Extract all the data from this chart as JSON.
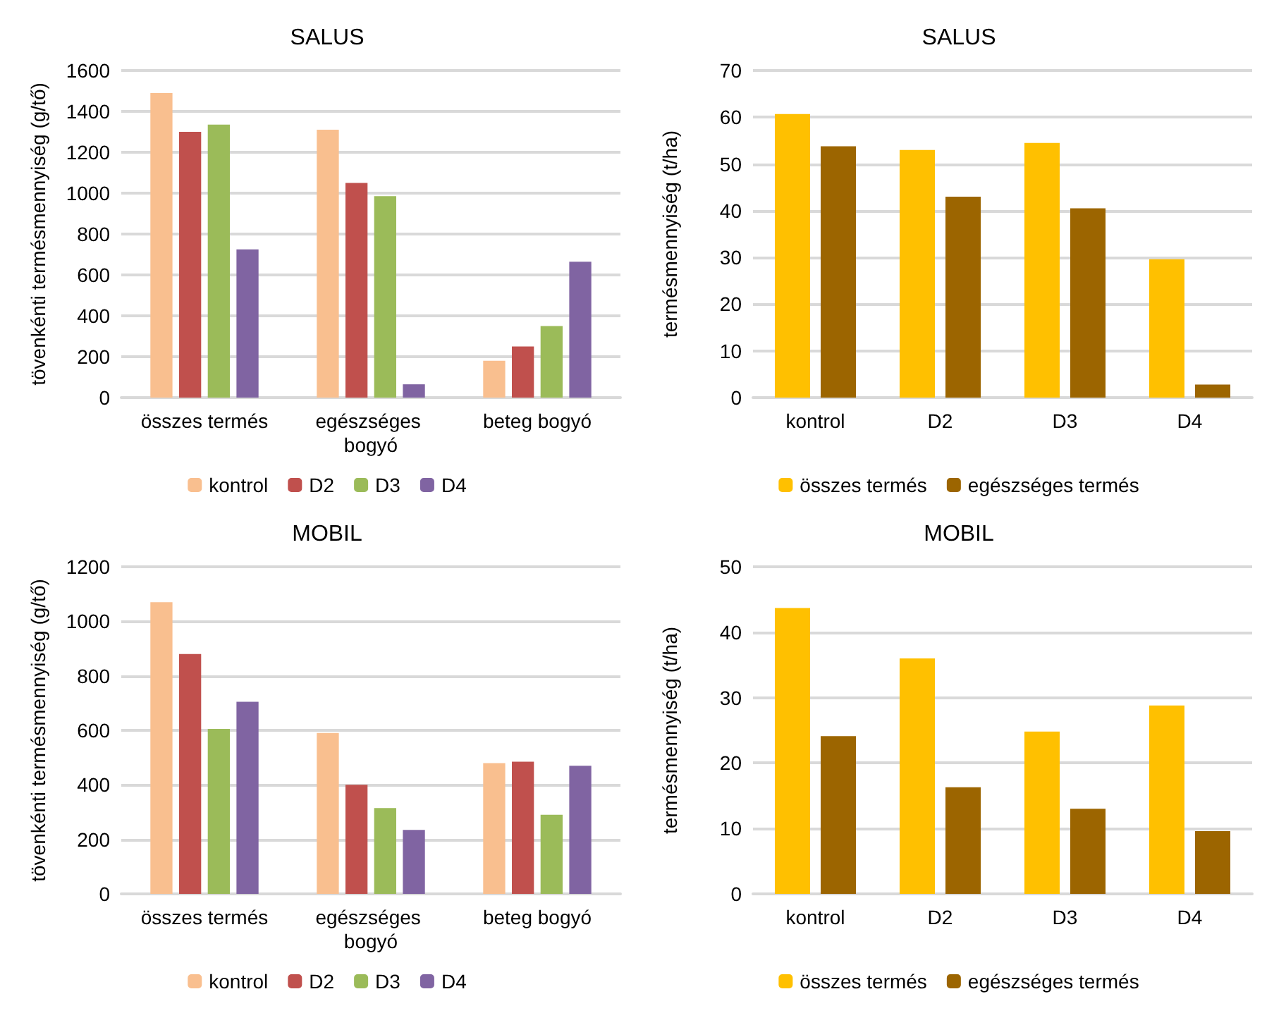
{
  "chart_data": [
    {
      "type": "bar",
      "title": "SALUS",
      "ylabel": "tövenkénti termésmennyiség (g/tő)",
      "categories": [
        "összes termés",
        "egészséges bogyó",
        "beteg bogyó"
      ],
      "series": [
        {
          "name": "kontrol",
          "color": "#f9bf8f",
          "values": [
            1490,
            1310,
            180
          ]
        },
        {
          "name": "D2",
          "color": "#c0504d",
          "values": [
            1300,
            1050,
            250
          ]
        },
        {
          "name": "D3",
          "color": "#9bbb59",
          "values": [
            1335,
            985,
            350
          ]
        },
        {
          "name": "D4",
          "color": "#8064a2",
          "values": [
            725,
            65,
            665
          ]
        }
      ],
      "ylim": [
        0,
        1600
      ],
      "yticks": [
        0,
        200,
        400,
        600,
        800,
        1000,
        1200,
        1400,
        1600
      ],
      "grid": "y",
      "legend": "bottom"
    },
    {
      "type": "bar",
      "title": "SALUS",
      "ylabel": "termésmennyiség (t/ha)",
      "categories": [
        "kontrol",
        "D2",
        "D3",
        "D4"
      ],
      "series": [
        {
          "name": "összes termés",
          "color": "#ffc000",
          "values": [
            60.7,
            53,
            54.5,
            29.6
          ]
        },
        {
          "name": "egészséges termés",
          "color": "#9c6500",
          "values": [
            53.8,
            43,
            40.5,
            2.8
          ]
        }
      ],
      "ylim": [
        0,
        70
      ],
      "yticks": [
        0,
        10,
        20,
        30,
        40,
        50,
        60,
        70
      ],
      "grid": "y",
      "legend": "bottom"
    },
    {
      "type": "bar",
      "title": "MOBIL",
      "ylabel": "tövenkénti termésmennyiség (g/tő)",
      "categories": [
        "összes termés",
        "egészséges bogyó",
        "beteg bogyó"
      ],
      "series": [
        {
          "name": "kontrol",
          "color": "#f9bf8f",
          "values": [
            1070,
            590,
            480
          ]
        },
        {
          "name": "D2",
          "color": "#c0504d",
          "values": [
            880,
            400,
            485
          ]
        },
        {
          "name": "D3",
          "color": "#9bbb59",
          "values": [
            605,
            315,
            290
          ]
        },
        {
          "name": "D4",
          "color": "#8064a2",
          "values": [
            705,
            235,
            470
          ]
        }
      ],
      "ylim": [
        0,
        1200
      ],
      "yticks": [
        0,
        200,
        400,
        600,
        800,
        1000,
        1200
      ],
      "grid": "y",
      "legend": "bottom"
    },
    {
      "type": "bar",
      "title": "MOBIL",
      "ylabel": "termésmennyiség (t/ha)",
      "categories": [
        "kontrol",
        "D2",
        "D3",
        "D4"
      ],
      "series": [
        {
          "name": "összes termés",
          "color": "#ffc000",
          "values": [
            43.7,
            36,
            24.8,
            28.8
          ]
        },
        {
          "name": "egészséges termés",
          "color": "#9c6500",
          "values": [
            24.1,
            16.3,
            13,
            9.6
          ]
        }
      ],
      "ylim": [
        0,
        50
      ],
      "yticks": [
        0,
        10,
        20,
        30,
        40,
        50
      ],
      "grid": "y",
      "legend": "bottom"
    }
  ]
}
